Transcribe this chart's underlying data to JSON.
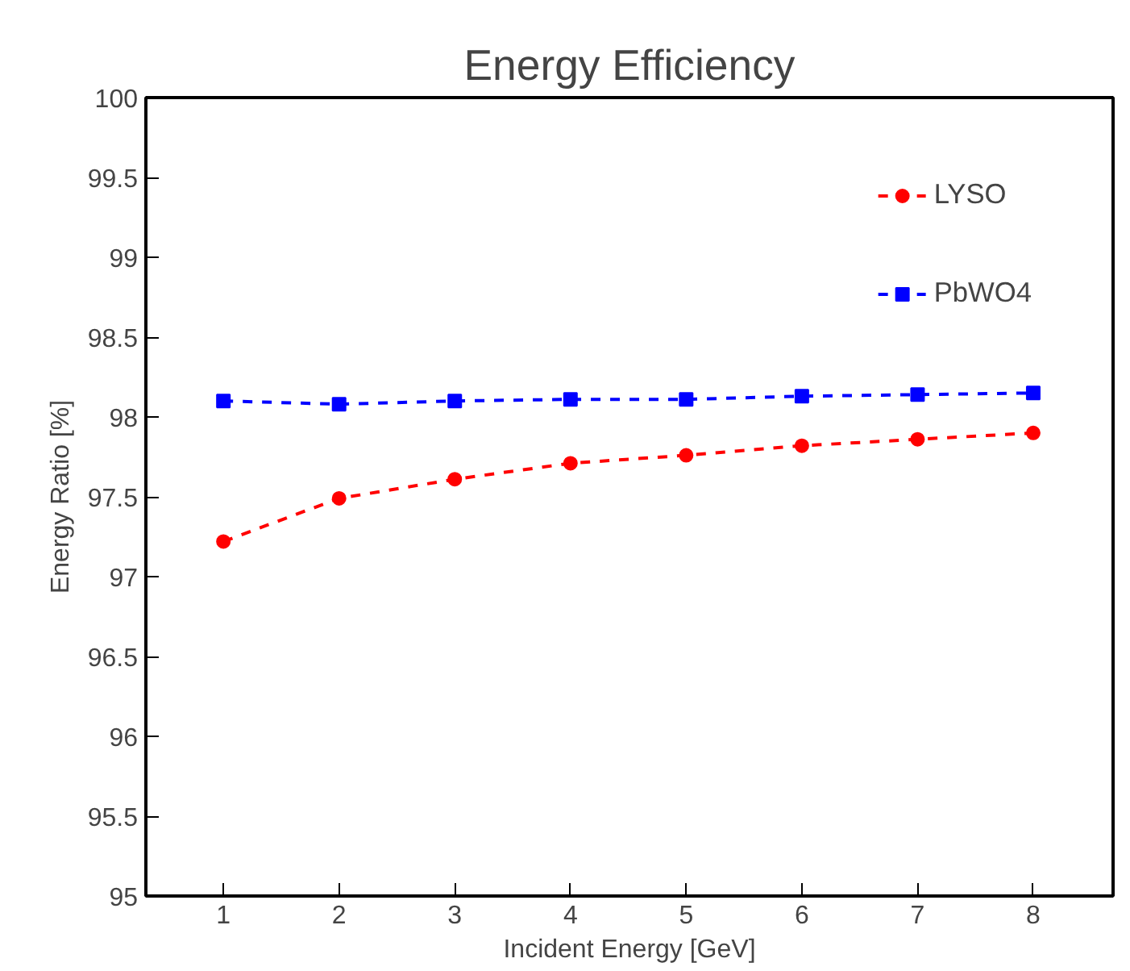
{
  "chart_data": {
    "type": "line",
    "title": "Energy Efficiency",
    "xlabel": "Incident Energy [GeV]",
    "ylabel": "Energy Ratio [%]",
    "x": [
      1,
      2,
      3,
      4,
      5,
      6,
      7,
      8
    ],
    "series": [
      {
        "name": "LYSO",
        "color": "#ff0000",
        "values": [
          97.22,
          97.49,
          97.61,
          97.71,
          97.76,
          97.82,
          97.86,
          97.9
        ],
        "marker": "circle"
      },
      {
        "name": "PbWO4",
        "color": "#0000ff",
        "values": [
          98.1,
          98.08,
          98.1,
          98.11,
          98.11,
          98.13,
          98.14,
          98.15
        ],
        "marker": "square"
      }
    ],
    "xlim": [
      0.33,
      8.69
    ],
    "ylim": [
      95,
      100
    ],
    "xticks": [
      1,
      2,
      3,
      4,
      5,
      6,
      7,
      8
    ],
    "yticks": [
      95,
      95.5,
      96,
      96.5,
      97,
      97.5,
      98,
      98.5,
      99,
      99.5,
      100
    ],
    "line_style": "dashed",
    "grid": false,
    "legend": "top right"
  }
}
